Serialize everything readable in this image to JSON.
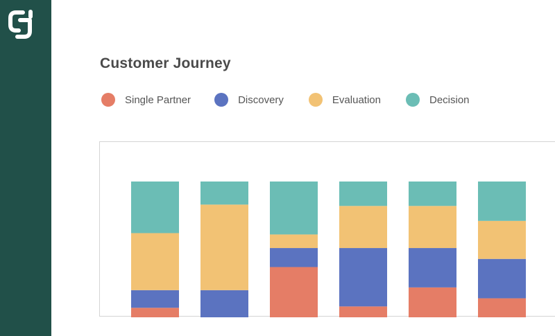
{
  "logo_icon": "cg-monogram-icon",
  "colors": {
    "sidebar": "#215049",
    "logo": "#ffffff"
  },
  "chart_data": {
    "type": "bar",
    "stacked": true,
    "title": "Customer Journey",
    "categories": [
      "",
      "",
      "",
      "",
      "",
      ""
    ],
    "ylim": [
      0,
      100
    ],
    "grid": false,
    "legend_position": "top-left",
    "series": [
      {
        "name": "Single Partner",
        "color": "#E57D66",
        "values": [
          7,
          0,
          37,
          8,
          22,
          14
        ]
      },
      {
        "name": "Discovery",
        "color": "#5B73C0",
        "values": [
          13,
          20,
          14,
          43,
          29,
          29
        ]
      },
      {
        "name": "Evaluation",
        "color": "#F2C274",
        "values": [
          42,
          63,
          10,
          31,
          31,
          28
        ]
      },
      {
        "name": "Decision",
        "color": "#6BBDB5",
        "values": [
          38,
          17,
          39,
          18,
          18,
          29
        ]
      }
    ]
  }
}
